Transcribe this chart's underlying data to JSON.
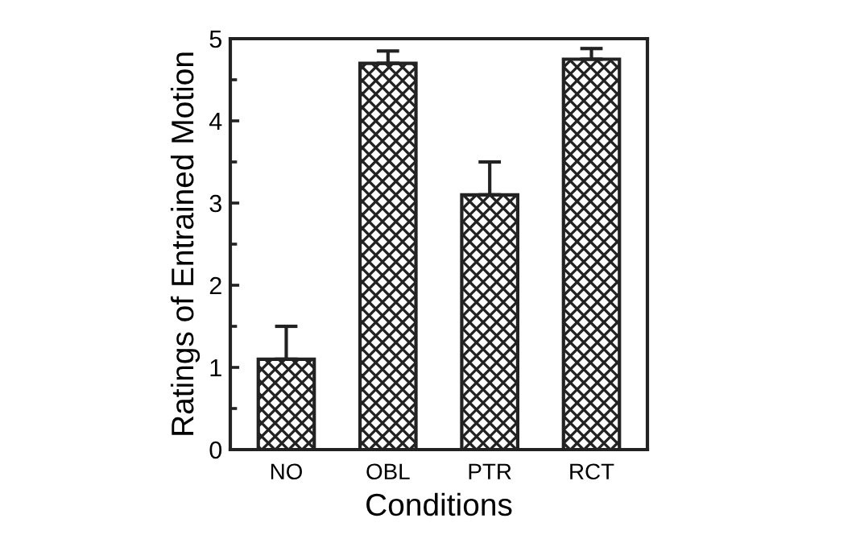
{
  "chart_data": {
    "type": "bar",
    "xlabel": "Conditions",
    "ylabel": "Ratings of Entrained Motion",
    "categories": [
      "NO",
      "OBL",
      "PTR",
      "RCT"
    ],
    "values": [
      1.1,
      4.7,
      3.1,
      4.75
    ],
    "errors": [
      [
        1.1,
        1.5
      ],
      [
        4.7,
        4.85
      ],
      [
        3.1,
        3.5
      ],
      [
        4.75,
        4.88
      ]
    ],
    "color": "#222222",
    "ylim": [
      0,
      5
    ],
    "yticks": [
      0,
      1,
      2,
      3,
      4,
      5
    ],
    "grid": false,
    "legend": false
  }
}
